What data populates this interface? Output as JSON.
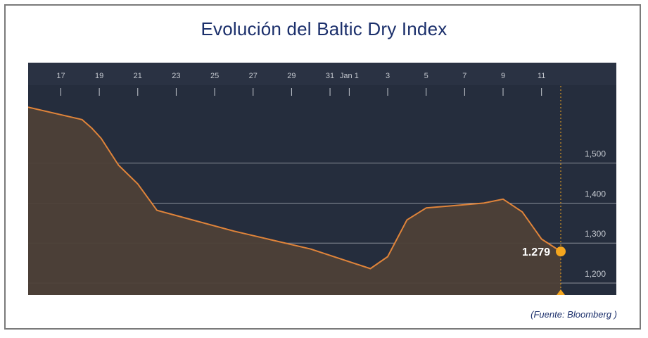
{
  "title": "Evolución del Baltic Dry Index",
  "source": "(Fuente: Bloomberg )",
  "colors": {
    "plot_bg": "#252d3d",
    "header_bg": "#2a3243",
    "area_fill": "#4d4037",
    "line": "#e0843a",
    "marker": "#f5a61e",
    "gridline": "#8a8f99",
    "axis_text": "#c5c9d0",
    "title": "#1b2f6b"
  },
  "chart_data": {
    "type": "area",
    "title": "Evolución del Baltic Dry Index",
    "xlabel": "",
    "ylabel": "",
    "ylim": [
      1170,
      1695
    ],
    "yticks": [
      1200,
      1300,
      1400,
      1500
    ],
    "ytick_labels": [
      "1,200",
      "1,300",
      "1,400",
      "1,500"
    ],
    "x_tick_labels": [
      {
        "day": 17,
        "label": "17"
      },
      {
        "day": 19,
        "label": "19"
      },
      {
        "day": 21,
        "label": "21"
      },
      {
        "day": 23,
        "label": "23"
      },
      {
        "day": 25,
        "label": "25"
      },
      {
        "day": 27,
        "label": "27"
      },
      {
        "day": 29,
        "label": "29"
      },
      {
        "day": 31,
        "label": "31"
      },
      {
        "day": 32,
        "label": "Jan 1"
      },
      {
        "day": 34,
        "label": "3"
      },
      {
        "day": 36,
        "label": "5"
      },
      {
        "day": 38,
        "label": "7"
      },
      {
        "day": 40,
        "label": "9"
      },
      {
        "day": 42,
        "label": "11"
      }
    ],
    "grid": true,
    "series": [
      {
        "values": [
          {
            "day": 15.3,
            "y": 1640
          },
          {
            "day": 18.1,
            "y": 1609
          },
          {
            "day": 18.6,
            "y": 1588
          },
          {
            "day": 19.1,
            "y": 1562
          },
          {
            "day": 20.0,
            "y": 1495
          },
          {
            "day": 21.0,
            "y": 1448
          },
          {
            "day": 22.0,
            "y": 1382
          },
          {
            "day": 26.0,
            "y": 1330
          },
          {
            "day": 30.0,
            "y": 1285
          },
          {
            "day": 33.1,
            "y": 1236
          },
          {
            "day": 34.0,
            "y": 1266
          },
          {
            "day": 35.0,
            "y": 1358
          },
          {
            "day": 36.0,
            "y": 1388
          },
          {
            "day": 37.0,
            "y": 1392
          },
          {
            "day": 39.0,
            "y": 1400
          },
          {
            "day": 40.0,
            "y": 1410
          },
          {
            "day": 41.0,
            "y": 1378
          },
          {
            "day": 42.0,
            "y": 1310
          },
          {
            "day": 43.0,
            "y": 1279
          }
        ]
      }
    ],
    "last_value_label": "1.279",
    "cursor_day": 43.0
  }
}
